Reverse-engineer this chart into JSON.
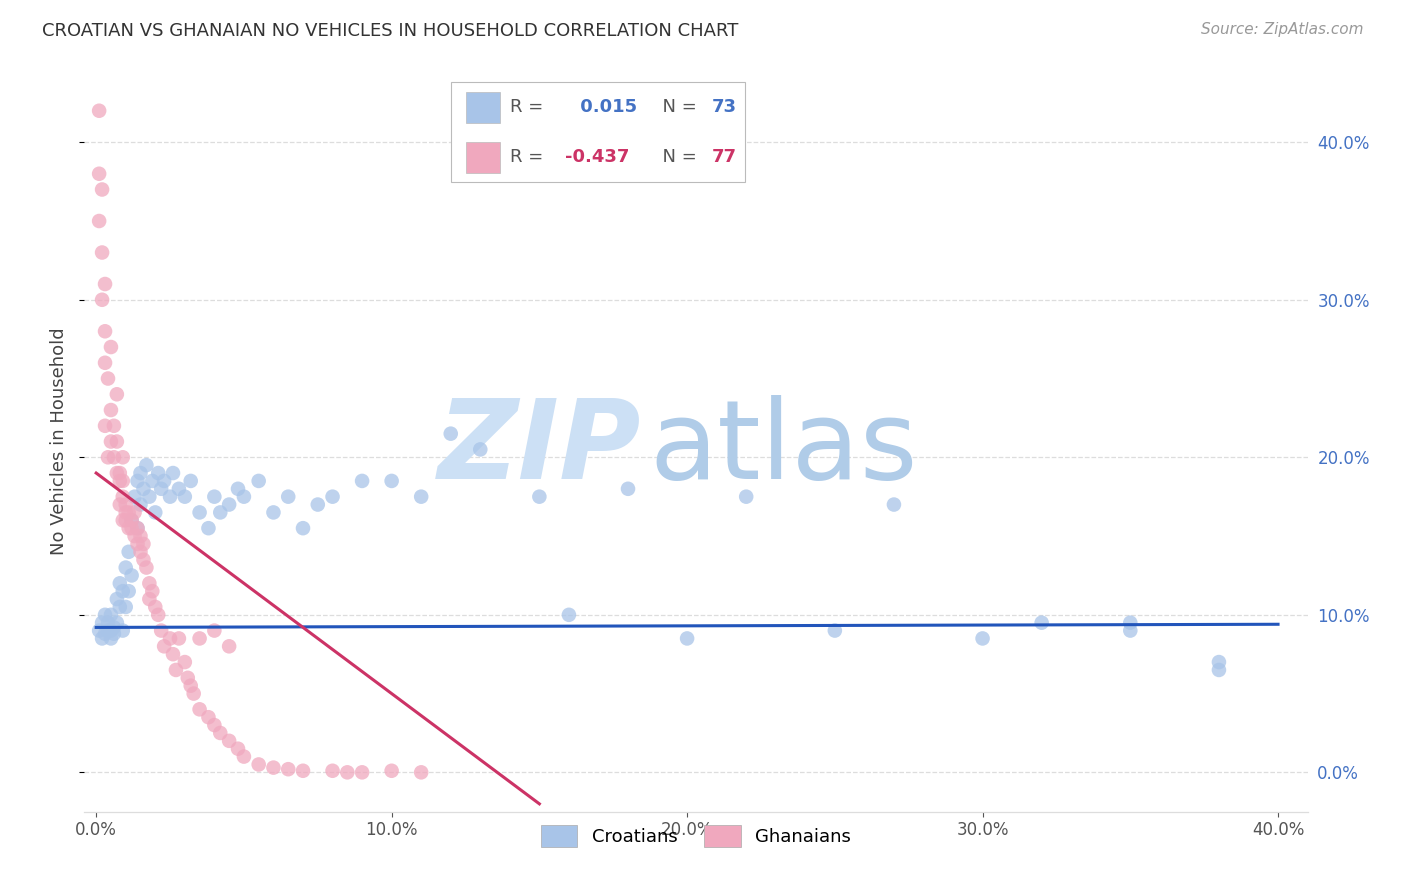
{
  "title": "CROATIAN VS GHANAIAN NO VEHICLES IN HOUSEHOLD CORRELATION CHART",
  "source": "Source: ZipAtlas.com",
  "ylabel": "No Vehicles in Household",
  "legend_blue_r": "0.015",
  "legend_blue_n": "73",
  "legend_pink_r": "-0.437",
  "legend_pink_n": "77",
  "blue_color": "#a8c4e8",
  "pink_color": "#f0a8be",
  "blue_line_color": "#2255bb",
  "pink_line_color": "#cc3366",
  "blue_scatter_x": [
    0.001,
    0.002,
    0.002,
    0.003,
    0.003,
    0.004,
    0.004,
    0.005,
    0.005,
    0.005,
    0.006,
    0.006,
    0.007,
    0.007,
    0.008,
    0.008,
    0.009,
    0.009,
    0.01,
    0.01,
    0.011,
    0.011,
    0.012,
    0.012,
    0.013,
    0.014,
    0.014,
    0.015,
    0.015,
    0.016,
    0.017,
    0.018,
    0.019,
    0.02,
    0.021,
    0.022,
    0.023,
    0.025,
    0.026,
    0.028,
    0.03,
    0.032,
    0.035,
    0.038,
    0.04,
    0.042,
    0.045,
    0.048,
    0.05,
    0.055,
    0.06,
    0.065,
    0.07,
    0.075,
    0.08,
    0.09,
    0.1,
    0.11,
    0.12,
    0.13,
    0.15,
    0.18,
    0.22,
    0.27,
    0.32,
    0.35,
    0.38,
    0.38,
    0.35,
    0.3,
    0.25,
    0.2,
    0.16
  ],
  "blue_scatter_y": [
    0.09,
    0.085,
    0.095,
    0.088,
    0.1,
    0.09,
    0.095,
    0.085,
    0.09,
    0.1,
    0.092,
    0.088,
    0.11,
    0.095,
    0.12,
    0.105,
    0.115,
    0.09,
    0.13,
    0.105,
    0.14,
    0.115,
    0.16,
    0.125,
    0.175,
    0.155,
    0.185,
    0.17,
    0.19,
    0.18,
    0.195,
    0.175,
    0.185,
    0.165,
    0.19,
    0.18,
    0.185,
    0.175,
    0.19,
    0.18,
    0.175,
    0.185,
    0.165,
    0.155,
    0.175,
    0.165,
    0.17,
    0.18,
    0.175,
    0.185,
    0.165,
    0.175,
    0.155,
    0.17,
    0.175,
    0.185,
    0.185,
    0.175,
    0.215,
    0.205,
    0.175,
    0.18,
    0.175,
    0.17,
    0.095,
    0.095,
    0.065,
    0.07,
    0.09,
    0.085,
    0.09,
    0.085,
    0.1
  ],
  "pink_scatter_x": [
    0.001,
    0.001,
    0.001,
    0.002,
    0.002,
    0.002,
    0.003,
    0.003,
    0.003,
    0.003,
    0.004,
    0.004,
    0.005,
    0.005,
    0.005,
    0.006,
    0.006,
    0.007,
    0.007,
    0.007,
    0.008,
    0.008,
    0.008,
    0.009,
    0.009,
    0.009,
    0.009,
    0.01,
    0.01,
    0.01,
    0.011,
    0.011,
    0.012,
    0.012,
    0.013,
    0.013,
    0.014,
    0.014,
    0.015,
    0.015,
    0.016,
    0.016,
    0.017,
    0.018,
    0.018,
    0.019,
    0.02,
    0.021,
    0.022,
    0.023,
    0.025,
    0.026,
    0.027,
    0.028,
    0.03,
    0.031,
    0.032,
    0.033,
    0.035,
    0.038,
    0.04,
    0.042,
    0.045,
    0.048,
    0.05,
    0.055,
    0.06,
    0.065,
    0.07,
    0.08,
    0.085,
    0.09,
    0.1,
    0.11,
    0.035,
    0.04,
    0.045
  ],
  "pink_scatter_y": [
    0.42,
    0.38,
    0.35,
    0.37,
    0.33,
    0.3,
    0.31,
    0.28,
    0.26,
    0.22,
    0.25,
    0.2,
    0.27,
    0.23,
    0.21,
    0.22,
    0.2,
    0.21,
    0.19,
    0.24,
    0.185,
    0.19,
    0.17,
    0.185,
    0.175,
    0.16,
    0.2,
    0.165,
    0.16,
    0.17,
    0.155,
    0.165,
    0.16,
    0.155,
    0.15,
    0.165,
    0.155,
    0.145,
    0.15,
    0.14,
    0.145,
    0.135,
    0.13,
    0.12,
    0.11,
    0.115,
    0.105,
    0.1,
    0.09,
    0.08,
    0.085,
    0.075,
    0.065,
    0.085,
    0.07,
    0.06,
    0.055,
    0.05,
    0.04,
    0.035,
    0.03,
    0.025,
    0.02,
    0.015,
    0.01,
    0.005,
    0.003,
    0.002,
    0.001,
    0.001,
    0.0,
    0.0,
    0.001,
    0.0,
    0.085,
    0.09,
    0.08
  ],
  "blue_line_x": [
    0.0,
    0.4
  ],
  "blue_line_y": [
    0.092,
    0.094
  ],
  "pink_line_x": [
    0.0,
    0.15
  ],
  "pink_line_y": [
    0.19,
    -0.02
  ],
  "xlim": [
    -0.004,
    0.41
  ],
  "ylim": [
    -0.025,
    0.445
  ],
  "x_ticks": [
    0.0,
    0.1,
    0.2,
    0.3,
    0.4
  ],
  "y_ticks": [
    0.0,
    0.1,
    0.2,
    0.3,
    0.4
  ],
  "grid_color": "#dddddd",
  "background_color": "#ffffff",
  "title_fontsize": 13,
  "label_fontsize": 13,
  "tick_fontsize": 12,
  "right_tick_color": "#4472c4",
  "watermark_zip_color": "#cce0f5",
  "watermark_atlas_color": "#b0cce8"
}
